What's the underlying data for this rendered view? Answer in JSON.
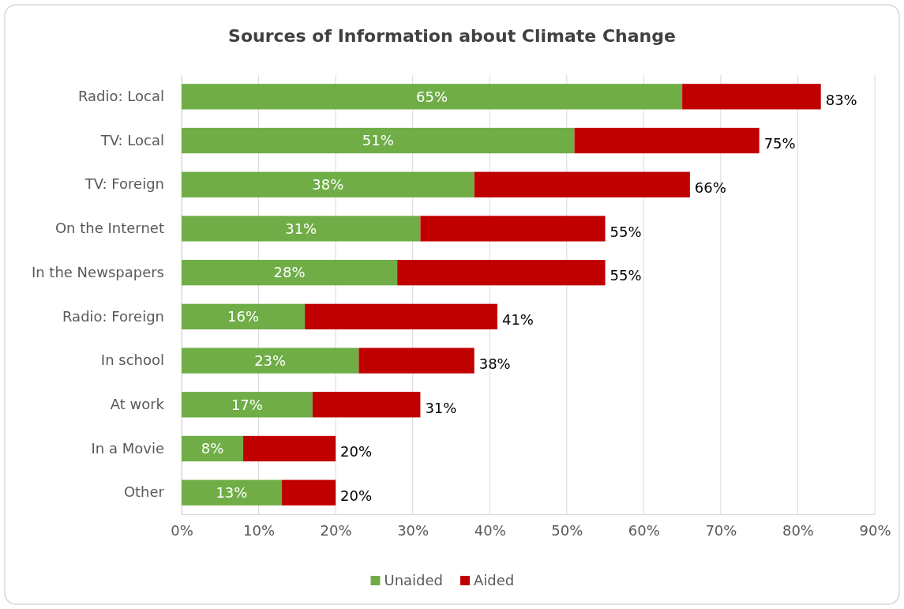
{
  "chart_data": {
    "type": "bar",
    "orientation": "horizontal",
    "stacked": true,
    "title": "Sources of Information about Climate Change",
    "categories": [
      "Radio: Local",
      "TV: Local",
      "TV: Foreign",
      "On the Internet",
      "In the Newspapers",
      "Radio: Foreign",
      "In school",
      "At work",
      "In a Movie",
      "Other"
    ],
    "series": [
      {
        "name": "Unaided",
        "color": "#70ad47",
        "values": [
          65,
          51,
          38,
          31,
          28,
          16,
          23,
          17,
          8,
          13
        ],
        "value_labels": [
          "65%",
          "51%",
          "38%",
          "31%",
          "28%",
          "16%",
          "23%",
          "17%",
          "8%",
          "13%"
        ]
      },
      {
        "name": "Aided",
        "color": "#c00000",
        "values": [
          18,
          24,
          28,
          24,
          27,
          25,
          15,
          14,
          12,
          7
        ]
      }
    ],
    "totals": [
      "83%",
      "75%",
      "66%",
      "55%",
      "55%",
      "41%",
      "38%",
      "31%",
      "20%",
      "20%"
    ],
    "xlim": [
      0,
      90
    ],
    "xticks": [
      {
        "value": 0,
        "label": "0%"
      },
      {
        "value": 10,
        "label": "10%"
      },
      {
        "value": 20,
        "label": "20%"
      },
      {
        "value": 30,
        "label": "30%"
      },
      {
        "value": 40,
        "label": "40%"
      },
      {
        "value": 50,
        "label": "50%"
      },
      {
        "value": 60,
        "label": "60%"
      },
      {
        "value": 70,
        "label": "70%"
      },
      {
        "value": 80,
        "label": "80%"
      },
      {
        "value": 90,
        "label": "90%"
      }
    ],
    "grid": "x",
    "legend": "bottom"
  }
}
